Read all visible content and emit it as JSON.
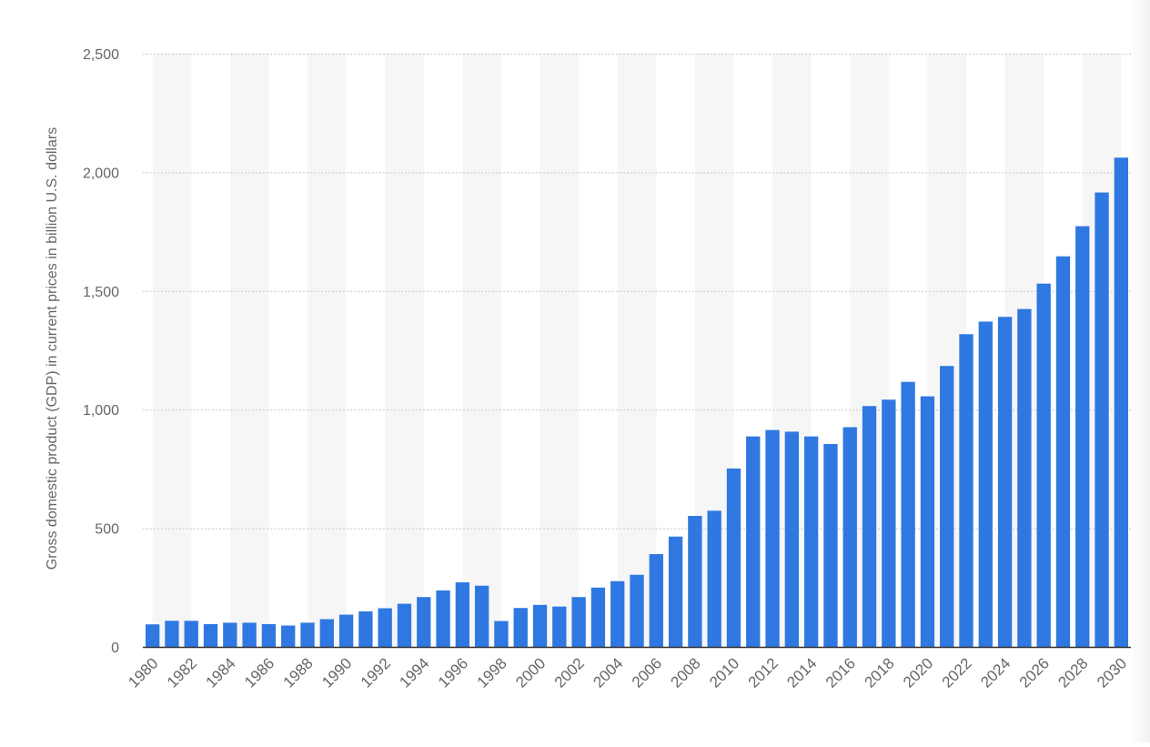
{
  "chart_data": {
    "type": "bar",
    "title": "",
    "xlabel": "",
    "ylabel": "Gross domestic product (GDP) in current prices in billion U.S. dollars",
    "ylim": [
      0,
      2500
    ],
    "y_ticks": [
      0,
      500,
      1000,
      1500,
      2000,
      2500
    ],
    "y_tick_labels": [
      "0",
      "500",
      "1,000",
      "1,500",
      "2,000",
      "2,500"
    ],
    "grid": true,
    "legend": "none",
    "colors": {
      "bar": "#2f78e2",
      "band": "#f6f6f6",
      "axis": "#333333",
      "text": "#666666"
    },
    "categories": [
      "1980",
      "1981",
      "1982",
      "1983",
      "1984",
      "1985",
      "1986",
      "1987",
      "1988",
      "1989",
      "1990",
      "1991",
      "1992",
      "1993",
      "1994",
      "1995",
      "1996",
      "1997",
      "1998",
      "1999",
      "2000",
      "2001",
      "2002",
      "2003",
      "2004",
      "2005",
      "2006",
      "2007",
      "2008",
      "2009",
      "2010",
      "2011",
      "2012",
      "2013",
      "2014",
      "2015",
      "2016",
      "2017",
      "2018",
      "2019",
      "2020",
      "2021",
      "2022",
      "2023",
      "2024",
      "2025",
      "2026",
      "2027",
      "2028",
      "2029",
      "2030"
    ],
    "x_tick_labels": [
      "1980",
      "1982",
      "1984",
      "1986",
      "1988",
      "1990",
      "1992",
      "1994",
      "1996",
      "1998",
      "2000",
      "2002",
      "2004",
      "2006",
      "2008",
      "2010",
      "2012",
      "2014",
      "2016",
      "2018",
      "2020",
      "2022",
      "2024",
      "2026",
      "2028",
      "2030"
    ],
    "values": [
      95,
      110,
      110,
      96,
      102,
      102,
      96,
      90,
      102,
      117,
      136,
      150,
      163,
      182,
      210,
      238,
      272,
      258,
      109,
      164,
      177,
      170,
      210,
      250,
      277,
      304,
      391,
      465,
      552,
      574,
      752,
      887,
      914,
      907,
      887,
      855,
      926,
      1015,
      1042,
      1117,
      1056,
      1184,
      1318,
      1371,
      1391,
      1424,
      1531,
      1646,
      1773,
      1915,
      2062
    ]
  }
}
